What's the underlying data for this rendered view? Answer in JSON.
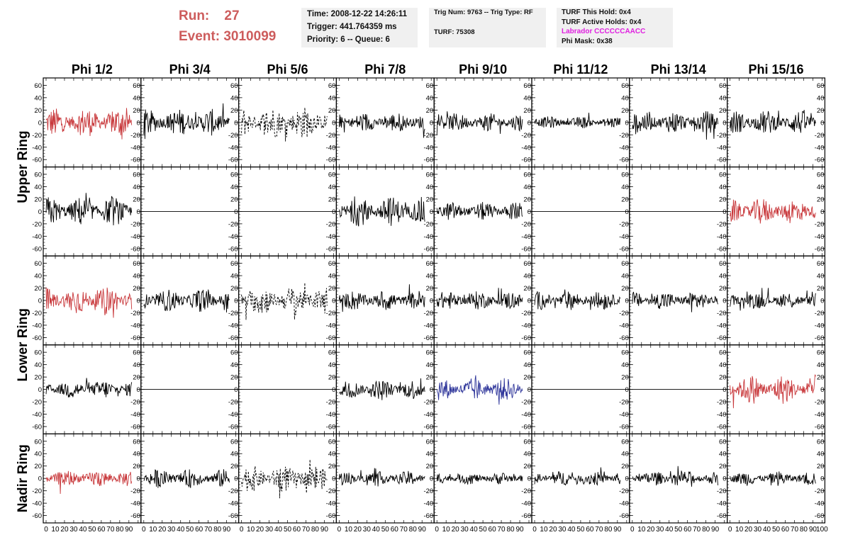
{
  "header": {
    "run_label": "Run:",
    "run_value": "27",
    "event_label": "Event:",
    "event_value": "3010099",
    "time": "Time: 2008-12-22 14:26:11",
    "trigger": "Trigger: 441.764359 ms",
    "priority": "Priority: 6 -- Queue: 6",
    "trig_num": "Trig Num: 9763 -- Trig Type: RF",
    "turf": "TURF: 75308",
    "turf_this_hold": "TURF This Hold: 0x4",
    "turf_active_holds": "TURF Active Holds: 0x4",
    "labrador": "Labrador CCCCCCAACC",
    "phi_mask": "Phi Mask: 0x38"
  },
  "colors": {
    "run_text": "#cd5c5c",
    "trace_default": "#000000",
    "trace_red": "#c8373a",
    "trace_blue": "#2c3399",
    "labrador_text": "#e020e0",
    "box_background": "#f0f0f0"
  },
  "chart_data": {
    "type": "line",
    "layout": "grid of 8 columns x 5 rows of waveform panels",
    "columns": [
      "Phi 1/2",
      "Phi 3/4",
      "Phi 5/6",
      "Phi 7/8",
      "Phi 9/10",
      "Phi 11/12",
      "Phi 13/14",
      "Phi 15/16"
    ],
    "ring_labels": [
      {
        "name": "Upper Ring",
        "rows": [
          0,
          1
        ]
      },
      {
        "name": "Lower Ring",
        "rows": [
          2,
          3
        ]
      },
      {
        "name": "Nadir Ring",
        "rows": [
          4
        ]
      }
    ],
    "xlim": [
      0,
      100
    ],
    "ylim": [
      -65,
      65
    ],
    "y_ticks": [
      -60,
      -40,
      -20,
      0,
      20,
      40,
      60
    ],
    "x_ticks": [
      0,
      10,
      20,
      30,
      40,
      50,
      60,
      70,
      80,
      90,
      100
    ],
    "x_tick_labels": [
      "0",
      "10",
      "20",
      "30",
      "40",
      "50",
      "60",
      "70",
      "80",
      "90",
      "100"
    ],
    "y_tick_labels": [
      "-60",
      "-40",
      "-20",
      "0",
      "20",
      "40",
      "60"
    ],
    "trace_x_range": [
      0,
      93
    ],
    "panels": [
      [
        {
          "style": "red",
          "amp": 22
        },
        {
          "style": "solid",
          "amp": 20
        },
        {
          "style": "dashed",
          "amp": 24
        },
        {
          "style": "solid",
          "amp": 15
        },
        {
          "style": "solid",
          "amp": 14
        },
        {
          "style": "solid",
          "amp": 9
        },
        {
          "style": "solid",
          "amp": 17
        },
        {
          "style": "solid",
          "amp": 18
        }
      ],
      [
        {
          "style": "solid",
          "amp": 22
        },
        {
          "style": "flat",
          "amp": 0
        },
        {
          "style": "flat",
          "amp": 0
        },
        {
          "style": "solid",
          "amp": 22
        },
        {
          "style": "solid",
          "amp": 14
        },
        {
          "style": "flat",
          "amp": 0
        },
        {
          "style": "flat",
          "amp": 0
        },
        {
          "style": "red",
          "amp": 20
        }
      ],
      [
        {
          "style": "red",
          "amp": 21
        },
        {
          "style": "solid",
          "amp": 17
        },
        {
          "style": "dashed",
          "amp": 22
        },
        {
          "style": "solid",
          "amp": 15
        },
        {
          "style": "solid",
          "amp": 14
        },
        {
          "style": "solid",
          "amp": 14
        },
        {
          "style": "solid",
          "amp": 14
        },
        {
          "style": "solid",
          "amp": 13
        }
      ],
      [
        {
          "style": "solid",
          "amp": 14
        },
        {
          "style": "flat",
          "amp": 0
        },
        {
          "style": "flat",
          "amp": 0
        },
        {
          "style": "solid",
          "amp": 15
        },
        {
          "style": "blue",
          "amp": 17
        },
        {
          "style": "flat",
          "amp": 0
        },
        {
          "style": "flat",
          "amp": 0
        },
        {
          "style": "red",
          "amp": 22
        }
      ],
      [
        {
          "style": "red",
          "amp": 13
        },
        {
          "style": "solid",
          "amp": 14
        },
        {
          "style": "dashed",
          "amp": 20
        },
        {
          "style": "solid",
          "amp": 11
        },
        {
          "style": "solid",
          "amp": 9
        },
        {
          "style": "solid",
          "amp": 11
        },
        {
          "style": "solid",
          "amp": 11
        },
        {
          "style": "solid",
          "amp": 11
        }
      ]
    ]
  }
}
